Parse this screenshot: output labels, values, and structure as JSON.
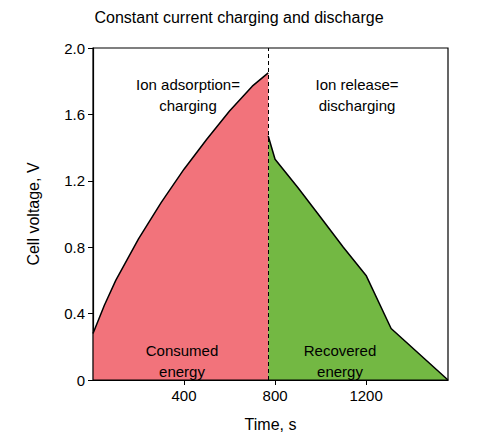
{
  "chart_data": {
    "type": "area",
    "title": "Constant current charging and discharge",
    "x_label": "Time, s",
    "y_label": "Cell voltage, V",
    "xlim": [
      0,
      1560
    ],
    "xticks": [
      400,
      800,
      1200
    ],
    "ylim": [
      0,
      2
    ],
    "yticks": [
      0,
      0.4,
      0.8,
      1.2,
      1.6,
      {
        "value": 2,
        "label": "2.0"
      }
    ],
    "grid": false,
    "divider_x": 770,
    "annotations": [
      "Ion adsorption=\ncharging",
      "Ion release=\ndischarging",
      "Consumed\nenergy",
      "Recovered\nenergy"
    ],
    "series": [
      {
        "x": [
          0,
          50,
          100,
          200,
          300,
          400,
          500,
          600,
          700,
          770
        ],
        "values": [
          0.28,
          0.45,
          0.6,
          0.85,
          1.07,
          1.27,
          1.45,
          1.62,
          1.77,
          1.85
        ],
        "color": "#f2737b"
      },
      {
        "x": [
          770,
          800,
          900,
          1000,
          1100,
          1200,
          1310,
          1560
        ],
        "values": [
          1.47,
          1.33,
          1.16,
          0.98,
          0.8,
          0.63,
          0.31,
          0
        ],
        "color": "#73b843"
      }
    ]
  }
}
